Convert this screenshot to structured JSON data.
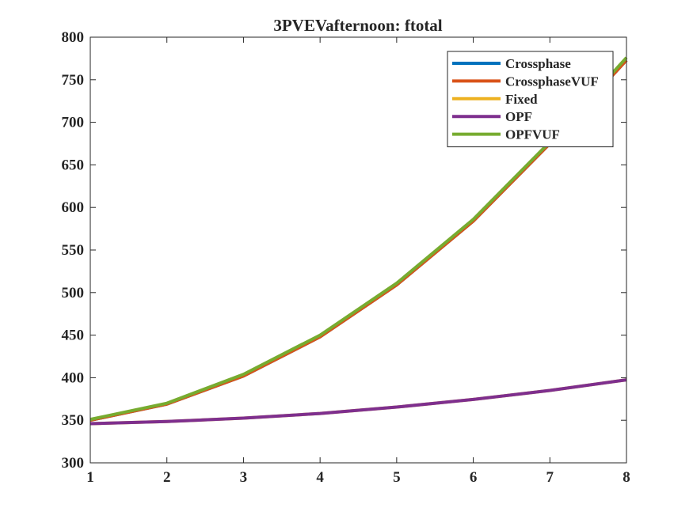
{
  "chart_data": {
    "type": "line",
    "title": "3PVEVafternoon: ftotal",
    "xlabel": "",
    "ylabel": "",
    "x": [
      1,
      2,
      3,
      4,
      5,
      6,
      7,
      8
    ],
    "xlim": [
      1,
      8
    ],
    "ylim": [
      300,
      800
    ],
    "xticks": [
      1,
      2,
      3,
      4,
      5,
      6,
      7,
      8
    ],
    "yticks": [
      300,
      350,
      400,
      450,
      500,
      550,
      600,
      650,
      700,
      750,
      800
    ],
    "grid": false,
    "legend_position": "top-right",
    "series": [
      {
        "name": "Crossphase",
        "color": "#0072BD",
        "values": [
          350,
          369,
          402,
          448,
          509,
          584,
          675,
          773
        ]
      },
      {
        "name": "CrossphaseVUF",
        "color": "#D95319",
        "values": [
          350,
          369,
          402,
          448,
          509,
          584,
          675,
          773
        ]
      },
      {
        "name": "Fixed",
        "color": "#EDB120",
        "values": [
          346,
          348.5,
          352.5,
          358,
          365.5,
          374.5,
          385,
          397.5
        ]
      },
      {
        "name": "OPF",
        "color": "#7E2F8E",
        "values": [
          346,
          348.5,
          352.5,
          358,
          365.5,
          374.5,
          385,
          397.5
        ]
      },
      {
        "name": "OPFVUF",
        "color": "#77AC30",
        "values": [
          351,
          370,
          404,
          450,
          511,
          586,
          677,
          776
        ]
      }
    ]
  }
}
